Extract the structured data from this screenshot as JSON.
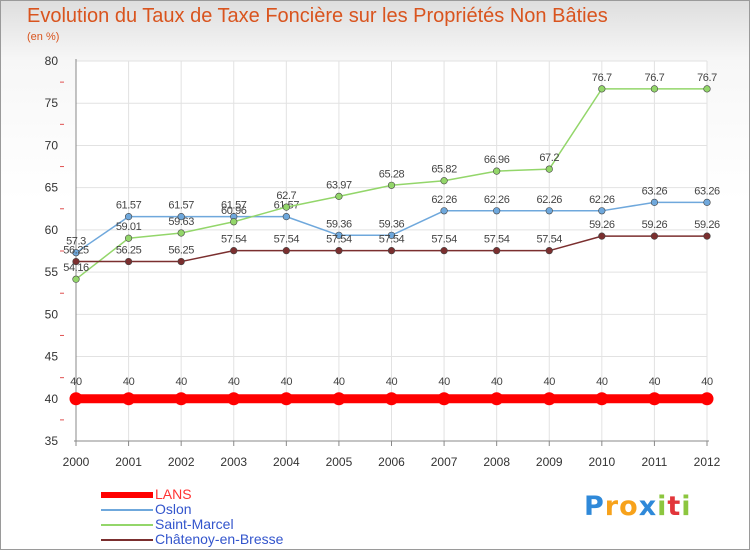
{
  "chart_data": {
    "type": "line",
    "title": "Evolution du Taux de Taxe Foncière sur les Propriétés Non Bâties",
    "subtitle": "(en %)",
    "x": [
      "2000",
      "2001",
      "2002",
      "2003",
      "2004",
      "2005",
      "2006",
      "2007",
      "2008",
      "2009",
      "2010",
      "2011",
      "2012"
    ],
    "ylim": [
      35,
      80
    ],
    "yticks": [
      "35",
      "40",
      "45",
      "50",
      "55",
      "60",
      "65",
      "70",
      "75",
      "80"
    ],
    "grid": true,
    "legend_position": "bottom-left",
    "series": [
      {
        "name": "LANS",
        "color": "#ff0000",
        "values": [
          40,
          40,
          40,
          40,
          40,
          40,
          40,
          40,
          40,
          40,
          40,
          40,
          40
        ],
        "labels": [
          "40",
          "40",
          "40",
          "40",
          "40",
          "40",
          "40",
          "40",
          "40",
          "40",
          "40",
          "40",
          "40"
        ]
      },
      {
        "name": "Oslon",
        "color": "#6fa8dc",
        "values": [
          57.3,
          61.57,
          61.57,
          61.57,
          61.57,
          59.36,
          59.36,
          62.26,
          62.26,
          62.26,
          62.26,
          63.26,
          63.26
        ],
        "labels": [
          "57.3",
          "61.57",
          "61.57",
          "61.57",
          "61.57",
          "59.36",
          "59.36",
          "62.26",
          "62.26",
          "62.26",
          "62.26",
          "63.26",
          "63.26"
        ]
      },
      {
        "name": "Saint-Marcel",
        "color": "#93d66a",
        "values": [
          54.16,
          59.01,
          59.63,
          60.96,
          62.7,
          63.97,
          65.28,
          65.82,
          66.96,
          67.2,
          76.7,
          76.7,
          76.7
        ],
        "labels": [
          "54.16",
          "59.01",
          "59.63",
          "60.96",
          "62.7",
          "63.97",
          "65.28",
          "65.82",
          "66.96",
          "67.2",
          "76.7",
          "76.7",
          "76.7"
        ]
      },
      {
        "name": "Châtenoy-en-Bresse",
        "color": "#7b2f2f",
        "values": [
          56.25,
          56.25,
          56.25,
          57.54,
          57.54,
          57.54,
          57.54,
          57.54,
          57.54,
          57.54,
          59.26,
          59.26,
          59.26
        ],
        "labels": [
          "56.25",
          "56.25",
          "56.25",
          "57.54",
          "57.54",
          "57.54",
          "57.54",
          "57.54",
          "57.54",
          "57.54",
          "59.26",
          "59.26",
          "59.26"
        ]
      }
    ]
  },
  "logo": {
    "letters": [
      "P",
      "r",
      "o",
      "x",
      "i",
      "t",
      "i"
    ],
    "colors": [
      "#2f89d9",
      "#f7a21b",
      "#f7a21b",
      "#2f89d9",
      "#8cc63f",
      "#e2353a",
      "#8cc63f"
    ]
  }
}
